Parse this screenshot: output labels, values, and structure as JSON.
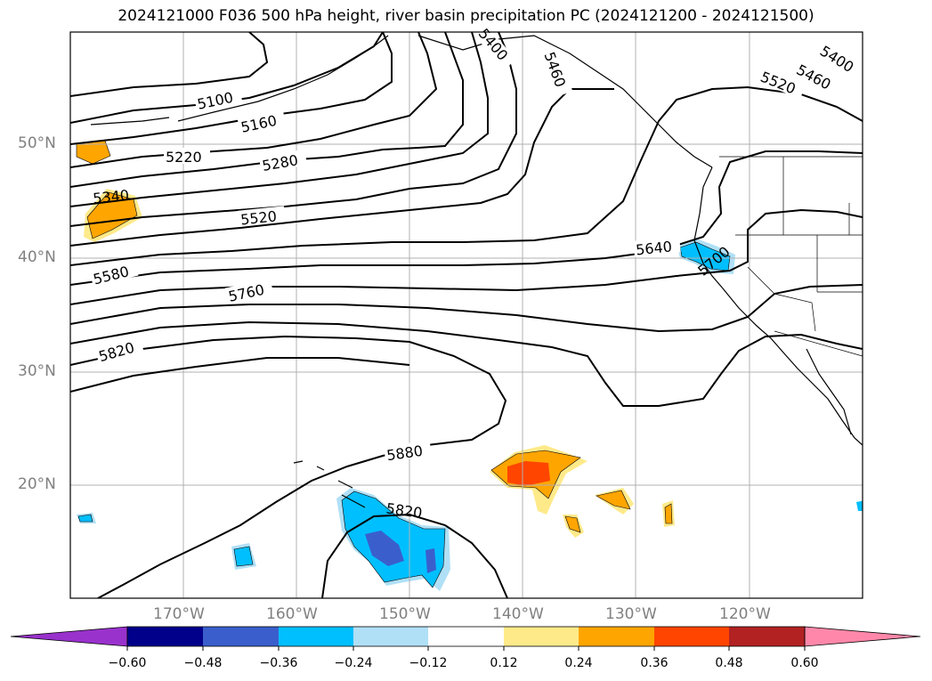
{
  "title": "2024121000 F036 500 hPa height, river basin precipitation PC (2024121200 - 2024121500)",
  "lat_labels": [
    "50°N",
    "40°N",
    "30°N",
    "20°N"
  ],
  "lon_labels": [
    "170°W",
    "160°W",
    "150°W",
    "140°W",
    "130°W",
    "120°W"
  ],
  "contour_labels": [
    "5100",
    "5160",
    "5220",
    "5280",
    "5340",
    "5400",
    "5460",
    "5400",
    "5460",
    "5520",
    "5520",
    "5580",
    "5640",
    "5700",
    "5760",
    "5820",
    "5880",
    "5820"
  ],
  "colorbar": {
    "ticks": [
      "−0.60",
      "−0.48",
      "−0.36",
      "−0.24",
      "−0.12",
      "0.12",
      "0.24",
      "0.36",
      "0.48",
      "0.60"
    ],
    "colors": [
      "#9932cc",
      "#00008b",
      "#3a5fcd",
      "#00bfff",
      "#b0e0f6",
      "#ffffff",
      "#ffea8a",
      "#ffa500",
      "#ff4500",
      "#b22222",
      "#ff88aa"
    ]
  },
  "colors": {
    "contour": "#000000",
    "grid": "#b0b0b0",
    "coast": "#000000"
  }
}
